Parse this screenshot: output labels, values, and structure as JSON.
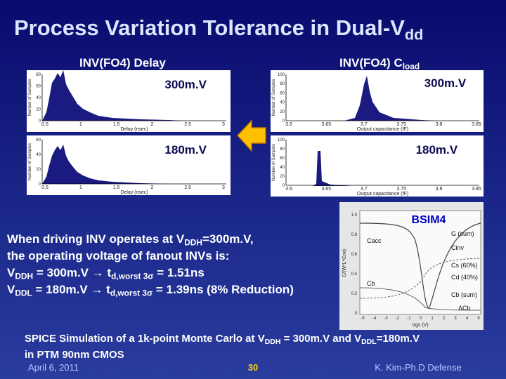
{
  "title": [
    {
      "text": "Process Variation Tolerance in Dual-V"
    },
    {
      "text": "dd",
      "sub": true
    }
  ],
  "delay_header": [
    {
      "text": "INV(FO4) Delay"
    }
  ],
  "cload_header": [
    {
      "text": "INV(FO4) C"
    },
    {
      "text": "load",
      "sub": true
    }
  ],
  "plots": [
    {
      "label": "300m.V",
      "x_label": "Delay (nsec)",
      "y_label": "Number of Samples",
      "x_ticks": [
        "0.5",
        "1",
        "1.5",
        "2",
        "2.5",
        "3"
      ],
      "y_ticks": [
        "0",
        "20",
        "40",
        "60",
        "80"
      ]
    },
    {
      "label": "180m.V",
      "x_label": "Delay (nsec)",
      "y_label": "Number of Samples",
      "x_ticks": [
        "0.5",
        "1",
        "1.5",
        "2",
        "2.5",
        "3"
      ],
      "y_ticks": [
        "0",
        "20",
        "40",
        "60"
      ]
    },
    {
      "label": "300m.V",
      "x_label": "Output capacitance (fF)",
      "y_label": "Number of Samples",
      "x_ticks": [
        "3.6",
        "3.65",
        "3.7",
        "3.75",
        "3.8",
        "3.85"
      ],
      "y_ticks": [
        "0",
        "20",
        "40",
        "60",
        "80",
        "100"
      ]
    },
    {
      "label": "180m.V",
      "x_label": "Output capacitance (fF)",
      "y_label": "Number of Samples",
      "x_ticks": [
        "3.6",
        "3.65",
        "3.7",
        "3.75",
        "3.8",
        "3.85"
      ],
      "y_ticks": [
        "0",
        "20",
        "40",
        "60",
        "80",
        "100"
      ]
    }
  ],
  "bsim4": {
    "title": "BSIM4",
    "y_label": "C/(W*L*Cox)",
    "y_ticks": [
      "1.0",
      "0.8",
      "0.6",
      "0.4",
      "0.2",
      "0"
    ],
    "x_label": "Vgs (V)",
    "x_ticks": [
      "-5",
      "-4",
      "-3",
      "-2",
      "-1",
      "0",
      "1",
      "2",
      "3",
      "4",
      "5"
    ],
    "curve_labels": [
      "Cacc",
      "G (sum)",
      "Cinv",
      "Cs (60%)",
      "Cd (40%)",
      "Cb",
      "Cb (sum)",
      "ΔCb"
    ]
  },
  "body": [
    [
      {
        "text": "When driving INV operates at V"
      },
      {
        "text": "DDH",
        "sub": true
      },
      {
        "text": "=300m.V,"
      }
    ],
    [
      {
        "text": "the operating voltage of fanout INVs is:"
      }
    ],
    [
      {
        "text": "V"
      },
      {
        "text": "DDH",
        "sub": true
      },
      {
        "text": " = 300m.V → t"
      },
      {
        "text": "d,worst 3σ",
        "sub": true
      },
      {
        "text": " = 1.51ns"
      }
    ],
    [
      {
        "text": "V"
      },
      {
        "text": "DDL",
        "sub": true
      },
      {
        "text": " = 180m.V → t"
      },
      {
        "text": "d,worst 3σ",
        "sub": true
      },
      {
        "text": " = 1.39ns (8% Reduction)"
      }
    ]
  ],
  "note": [
    [
      {
        "text": "SPICE Simulation of a 1k-point Monte Carlo at V"
      },
      {
        "text": "DDH",
        "sub": true
      },
      {
        "text": " = 300m.V and V"
      },
      {
        "text": "DDL",
        "sub": true
      },
      {
        "text": "=180m.V"
      }
    ],
    [
      {
        "text": "in PTM 90nm CMOS"
      }
    ]
  ],
  "footer": {
    "date": "April 6, 2011",
    "page": "30",
    "author": "K. Kim-Ph.D Defense"
  }
}
